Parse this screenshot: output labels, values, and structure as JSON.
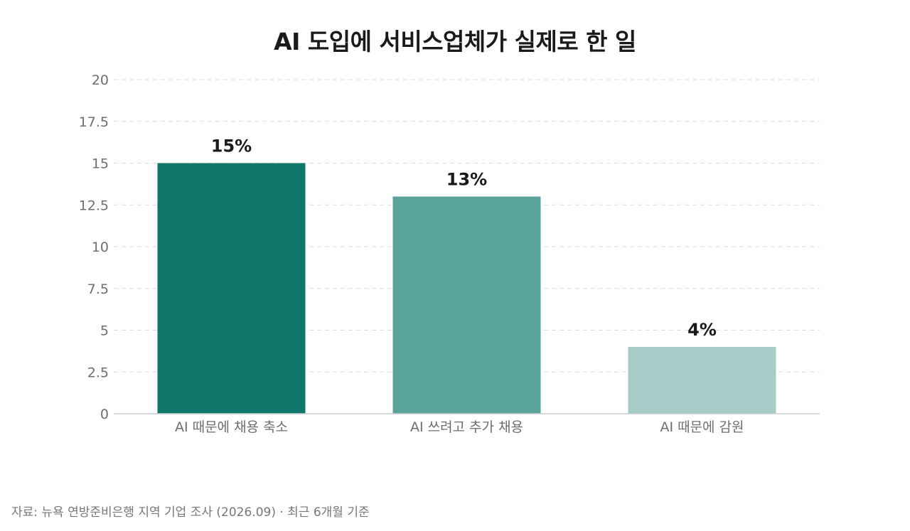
{
  "chart_data": {
    "type": "bar",
    "title": "AI 도입에 서비스업체가 실제로 한 일",
    "categories": [
      "AI 때문에 채용 축소",
      "AI 쓰려고 추가 채용",
      "AI 때문에 감원"
    ],
    "values": [
      15,
      13,
      4
    ],
    "data_labels": [
      "15%",
      "13%",
      "4%"
    ],
    "bar_colors": [
      "#0f766a",
      "#5aa39b",
      "#a6ccc7"
    ],
    "ylim": [
      0,
      20
    ],
    "yticks": [
      0,
      2.5,
      5,
      7.5,
      10,
      12.5,
      15,
      17.5,
      20
    ],
    "ytick_labels": [
      "0",
      "2.5",
      "5",
      "7.5",
      "10",
      "12.5",
      "15",
      "17.5",
      "20"
    ],
    "grid": true,
    "legend": "none",
    "xlabel": "",
    "ylabel": ""
  },
  "source_note": "자료: 뉴욕 연방준비은행 지역 기업 조사 (2026.09) · 최근 6개월 기준"
}
